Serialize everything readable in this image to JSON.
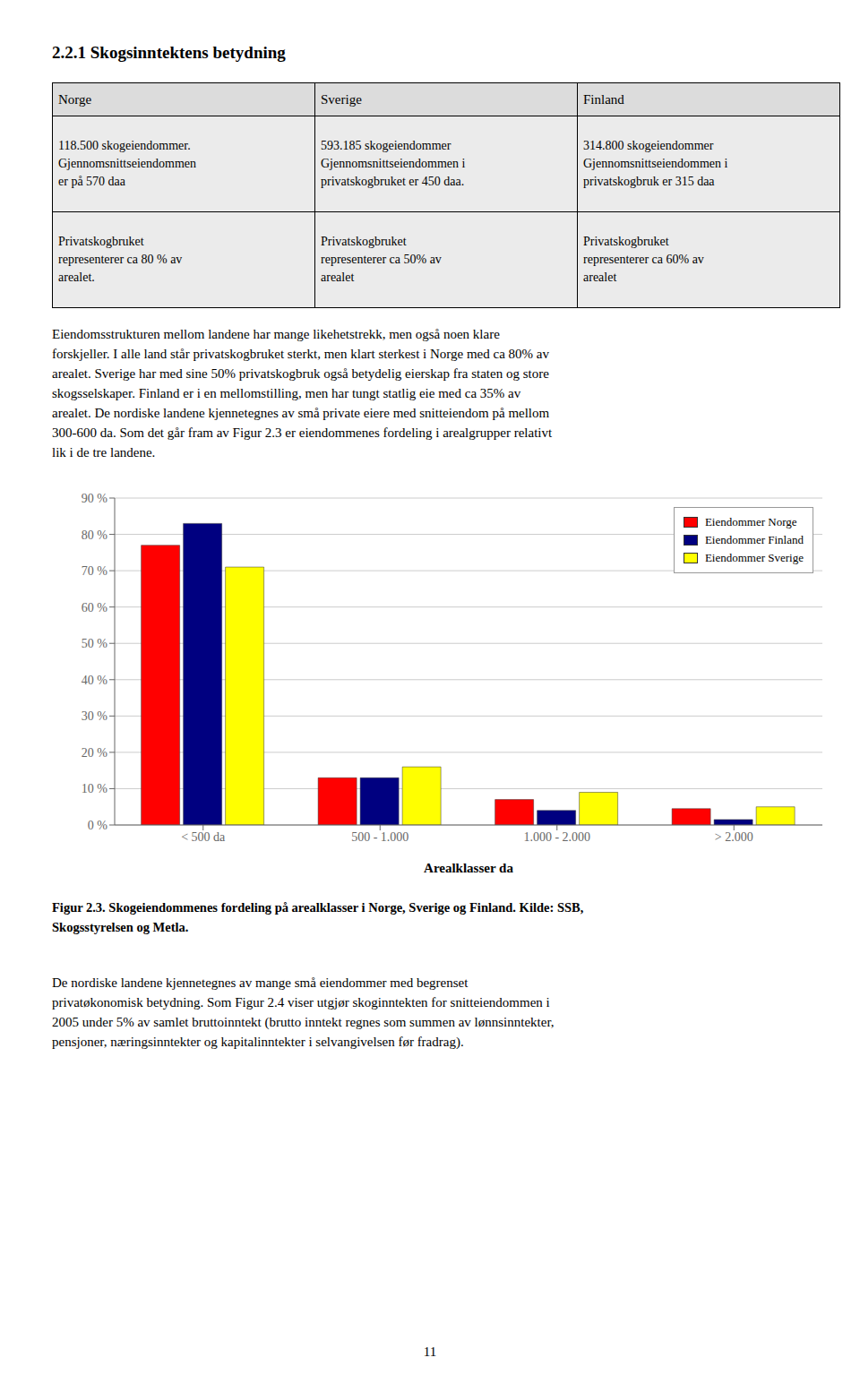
{
  "chart_data": {
    "type": "bar",
    "title": "2.2.1 Skogsinntektens betydning",
    "table": {
      "headers": [
        "Norge",
        "Sverige",
        "Finland"
      ],
      "rows": [
        [
          "118.500 skogeiendommer.\nGjennomsnittseiendommen\ner på 570 daa",
          "593.185 skogeiendommer\nGjennomsnittseiendommen i\nprivatskogbruket er 450 daa.",
          "314.800 skogeiendommer\nGjennomsnittseiendommen i\nprivatskogbruk er 315 daa"
        ],
        [
          "Privatskogbruket\nrepresenterer ca 80 % av\narealet.",
          "Privatskogbruket\nrepresenterer ca 50% av\narealet",
          "Privatskogbruket\nrepresenterer ca 60% av\narealet"
        ]
      ]
    },
    "annotations": [
      "Eiendomsstrukturen mellom landene har mange likehetstrekk, men også noen klare\nforskjeller. I alle land står privatskogbruket sterkt, men klart sterkest i Norge med ca 80% av\narealet. Sverige har med sine 50% privatskogbruk også betydelig eierskap fra staten og store\nskogsselskaper. Finland er i en mellomstilling, men har tungt statlig eie med ca 35% av\narealet. De nordiske landene kjennetegnes av små private eiere med snitteiendom på mellom\n300-600 da. Som det går fram av Figur 2.3 er eiendommenes fordeling i arealgrupper relativt\nlik i de tre landene.",
      "Figur 2.3. Skogeiendommenes fordeling på arealklasser i Norge, Sverige og Finland. Kilde: SSB,\nSkogsstyrelsen og Metla.",
      "De nordiske landene kjennetegnes av mange små eiendommer med begrenset\nprivatøkonomisk betydning. Som Figur 2.4 viser utgjør skoginntekten for snitteiendommen i\n2005 under 5% av samlet bruttoinntekt (brutto inntekt regnes som summen av lønnsinntekter,\npensjoner, næringsinntekter og kapitalinntekter i selvangivelsen før fradrag).",
      "11"
    ],
    "x_label": "Arealklasser da",
    "categories": [
      "< 500 da",
      "500 - 1.000",
      "1.000 - 2.000",
      "> 2.000"
    ],
    "series": [
      {
        "name": "Eiendommer Norge",
        "color": "#FF0000",
        "values": [
          77,
          13,
          7,
          4.5
        ]
      },
      {
        "name": "Eiendommer Finland",
        "color": "#000080",
        "values": [
          83,
          13,
          4,
          1.5
        ]
      },
      {
        "name": "Eiendommer Sverige",
        "color": "#FFFF00",
        "values": [
          71,
          16,
          9,
          5
        ]
      }
    ],
    "ylim": [
      0,
      90
    ],
    "yticks": [
      {
        "value": 0,
        "label": "0 %"
      },
      {
        "value": 10,
        "label": "10 %"
      },
      {
        "value": 20,
        "label": "20 %"
      },
      {
        "value": 30,
        "label": "30 %"
      },
      {
        "value": 40,
        "label": "40 %"
      },
      {
        "value": 50,
        "label": "50 %"
      },
      {
        "value": 60,
        "label": "60 %"
      },
      {
        "value": 70,
        "label": "70 %"
      },
      {
        "value": 80,
        "label": "80 %"
      },
      {
        "value": 90,
        "label": "90 %"
      }
    ],
    "grid": true,
    "legend": "top-right"
  }
}
